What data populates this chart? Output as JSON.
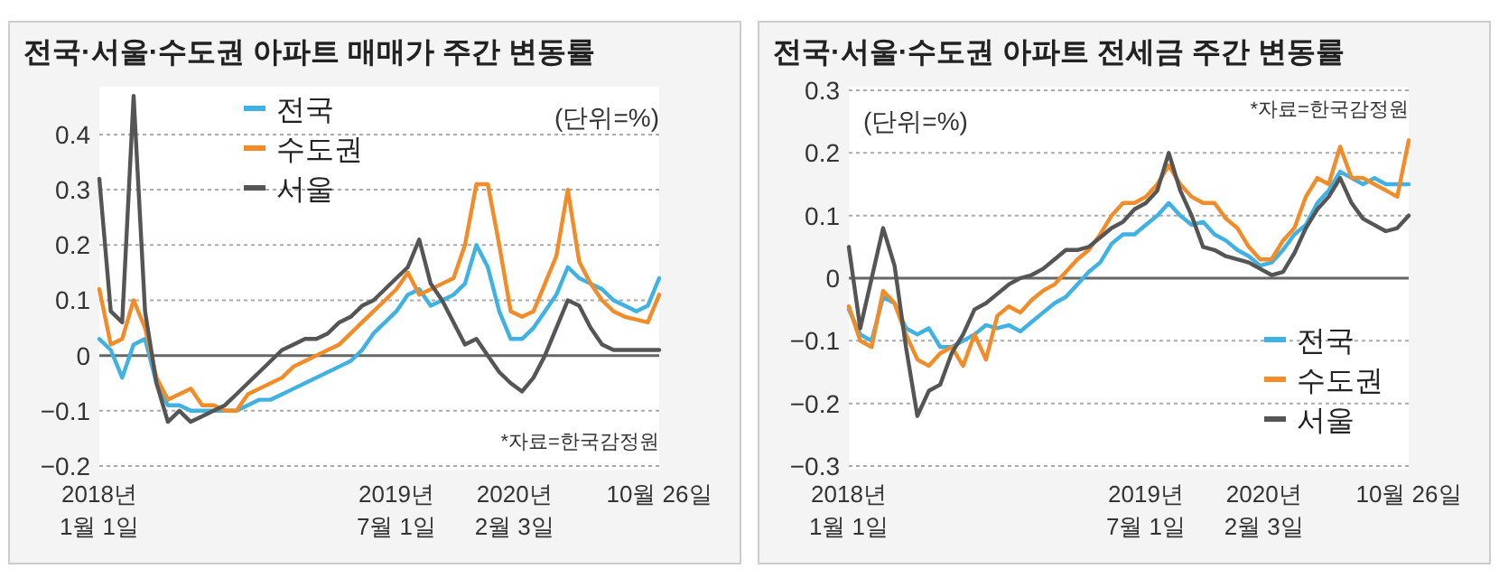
{
  "chart_data": [
    {
      "type": "line",
      "title": "전국·서울·수도권 아파트 매매가 주간 변동률",
      "annotations": [
        "(단위=%)",
        "*자료=한국감정원"
      ],
      "x": [
        "2018-01-01",
        "2018-01-22",
        "2018-02-12",
        "2018-03-05",
        "2018-03-26",
        "2018-04-16",
        "2018-05-07",
        "2018-05-28",
        "2018-06-18",
        "2018-07-09",
        "2018-07-30",
        "2018-08-20",
        "2018-09-10",
        "2018-10-01",
        "2018-10-22",
        "2018-11-12",
        "2018-12-03",
        "2018-12-24",
        "2019-01-14",
        "2019-02-04",
        "2019-02-25",
        "2019-03-18",
        "2019-04-08",
        "2019-04-29",
        "2019-05-20",
        "2019-06-10",
        "2019-07-01",
        "2019-07-22",
        "2019-08-12",
        "2019-09-02",
        "2019-09-23",
        "2019-10-14",
        "2019-11-04",
        "2019-11-25",
        "2019-12-16",
        "2020-01-06",
        "2020-01-27",
        "2020-02-17",
        "2020-03-09",
        "2020-03-30",
        "2020-04-20",
        "2020-05-11",
        "2020-06-01",
        "2020-06-22",
        "2020-07-13",
        "2020-08-03",
        "2020-08-24",
        "2020-09-14",
        "2020-10-05",
        "2020-10-26"
      ],
      "series": [
        {
          "name": "전국",
          "color": "#3fb1e3",
          "values": [
            0.03,
            0.01,
            -0.04,
            0.02,
            0.03,
            -0.05,
            -0.09,
            -0.09,
            -0.1,
            -0.1,
            -0.1,
            -0.1,
            -0.1,
            -0.09,
            -0.08,
            -0.08,
            -0.07,
            -0.06,
            -0.05,
            -0.04,
            -0.03,
            -0.02,
            -0.01,
            0.01,
            0.04,
            0.06,
            0.08,
            0.11,
            0.12,
            0.09,
            0.1,
            0.11,
            0.13,
            0.2,
            0.16,
            0.08,
            0.03,
            0.03,
            0.05,
            0.08,
            0.11,
            0.16,
            0.14,
            0.13,
            0.12,
            0.1,
            0.09,
            0.08,
            0.09,
            0.14
          ]
        },
        {
          "name": "수도권",
          "color": "#f28c28",
          "values": [
            0.12,
            0.02,
            0.03,
            0.1,
            0.05,
            -0.04,
            -0.08,
            -0.07,
            -0.06,
            -0.09,
            -0.09,
            -0.1,
            -0.1,
            -0.07,
            -0.06,
            -0.05,
            -0.04,
            -0.02,
            -0.01,
            0.0,
            0.01,
            0.02,
            0.04,
            0.06,
            0.08,
            0.1,
            0.12,
            0.15,
            0.11,
            0.12,
            0.13,
            0.14,
            0.2,
            0.31,
            0.31,
            0.2,
            0.08,
            0.07,
            0.08,
            0.13,
            0.18,
            0.3,
            0.17,
            0.13,
            0.1,
            0.08,
            0.07,
            0.065,
            0.06,
            0.11
          ]
        },
        {
          "name": "서울",
          "color": "#555555",
          "values": [
            0.32,
            0.08,
            0.06,
            0.47,
            0.08,
            -0.05,
            -0.12,
            -0.1,
            -0.12,
            -0.11,
            -0.1,
            -0.09,
            -0.07,
            -0.05,
            -0.03,
            -0.01,
            0.01,
            0.02,
            0.03,
            0.03,
            0.04,
            0.06,
            0.07,
            0.09,
            0.1,
            0.12,
            0.14,
            0.16,
            0.21,
            0.13,
            0.1,
            0.06,
            0.02,
            0.03,
            0.0,
            -0.03,
            -0.05,
            -0.065,
            -0.04,
            0.0,
            0.05,
            0.1,
            0.09,
            0.05,
            0.02,
            0.01,
            0.01,
            0.01,
            0.01,
            0.01
          ]
        }
      ],
      "xlim": [
        "2018-01-01",
        "2020-10-26"
      ],
      "xticks": [
        {
          "value": "2018-01-01",
          "label": "2018년\n1월 1일"
        },
        {
          "value": "2019-07-01",
          "label": "2019년\n7월 1일"
        },
        {
          "value": "2020-02-03",
          "label": "2020년\n2월 3일"
        },
        {
          "value": "2020-10-26",
          "label": "10월 26일"
        }
      ],
      "ylim": [
        -0.2,
        0.48
      ],
      "yticks": [
        {
          "value": -0.2,
          "label": "−0.2"
        },
        {
          "value": -0.1,
          "label": "−0.1"
        },
        0,
        0.1,
        0.2,
        0.3,
        0.4
      ],
      "grid": "y",
      "legend": "top"
    },
    {
      "type": "line",
      "title": "전국·서울·수도권 아파트 전세금 주간 변동률",
      "annotations": [
        "(단위=%)",
        "*자료=한국감정원"
      ],
      "x": [
        "2018-01-01",
        "2018-01-22",
        "2018-02-12",
        "2018-03-05",
        "2018-03-26",
        "2018-04-16",
        "2018-05-07",
        "2018-05-28",
        "2018-06-18",
        "2018-07-09",
        "2018-07-30",
        "2018-08-20",
        "2018-09-10",
        "2018-10-01",
        "2018-10-22",
        "2018-11-12",
        "2018-12-03",
        "2018-12-24",
        "2019-01-14",
        "2019-02-04",
        "2019-02-25",
        "2019-03-18",
        "2019-04-08",
        "2019-04-29",
        "2019-05-20",
        "2019-06-10",
        "2019-07-01",
        "2019-07-22",
        "2019-08-12",
        "2019-09-02",
        "2019-09-23",
        "2019-10-14",
        "2019-11-04",
        "2019-11-25",
        "2019-12-16",
        "2020-01-06",
        "2020-01-27",
        "2020-02-17",
        "2020-03-09",
        "2020-03-30",
        "2020-04-20",
        "2020-05-11",
        "2020-06-01",
        "2020-06-22",
        "2020-07-13",
        "2020-08-03",
        "2020-08-24",
        "2020-09-14",
        "2020-10-05",
        "2020-10-26"
      ],
      "series": [
        {
          "name": "전국",
          "color": "#3fb1e3",
          "values": [
            -0.05,
            -0.09,
            -0.1,
            -0.03,
            -0.04,
            -0.08,
            -0.09,
            -0.08,
            -0.11,
            -0.11,
            -0.1,
            -0.09,
            -0.075,
            -0.08,
            -0.075,
            -0.085,
            -0.07,
            -0.055,
            -0.04,
            -0.03,
            -0.01,
            0.01,
            0.025,
            0.055,
            0.07,
            0.07,
            0.085,
            0.1,
            0.12,
            0.1,
            0.085,
            0.09,
            0.07,
            0.06,
            0.045,
            0.035,
            0.02,
            0.025,
            0.045,
            0.07,
            0.085,
            0.12,
            0.14,
            0.17,
            0.16,
            0.15,
            0.16,
            0.15,
            0.15,
            0.15
          ]
        },
        {
          "name": "수도권",
          "color": "#f28c28",
          "values": [
            -0.045,
            -0.1,
            -0.11,
            -0.02,
            -0.04,
            -0.09,
            -0.13,
            -0.14,
            -0.12,
            -0.11,
            -0.14,
            -0.09,
            -0.13,
            -0.06,
            -0.045,
            -0.055,
            -0.035,
            -0.02,
            -0.01,
            0.01,
            0.03,
            0.045,
            0.07,
            0.1,
            0.12,
            0.12,
            0.13,
            0.15,
            0.18,
            0.15,
            0.13,
            0.12,
            0.12,
            0.095,
            0.08,
            0.05,
            0.03,
            0.03,
            0.06,
            0.08,
            0.13,
            0.16,
            0.15,
            0.21,
            0.16,
            0.16,
            0.15,
            0.14,
            0.13,
            0.22
          ]
        },
        {
          "name": "서울",
          "color": "#555555",
          "values": [
            0.05,
            -0.08,
            0.0,
            0.08,
            0.02,
            -0.11,
            -0.22,
            -0.18,
            -0.17,
            -0.12,
            -0.09,
            -0.05,
            -0.04,
            -0.025,
            -0.01,
            0.0,
            0.005,
            0.015,
            0.03,
            0.045,
            0.045,
            0.05,
            0.065,
            0.08,
            0.09,
            0.11,
            0.12,
            0.14,
            0.2,
            0.14,
            0.1,
            0.05,
            0.045,
            0.035,
            0.03,
            0.025,
            0.015,
            0.005,
            0.01,
            0.04,
            0.08,
            0.11,
            0.13,
            0.16,
            0.12,
            0.095,
            0.085,
            0.075,
            0.08,
            0.1
          ]
        }
      ],
      "xlim": [
        "2018-01-01",
        "2020-10-26"
      ],
      "xticks": [
        {
          "value": "2018-01-01",
          "label": "2018년\n1월 1일"
        },
        {
          "value": "2019-07-01",
          "label": "2019년\n7월 1일"
        },
        {
          "value": "2020-02-03",
          "label": "2020년\n2월 3일"
        },
        {
          "value": "2020-10-26",
          "label": "10월 26일"
        }
      ],
      "ylim": [
        -0.3,
        0.3
      ],
      "yticks": [
        {
          "value": -0.3,
          "label": "−0.3"
        },
        {
          "value": -0.2,
          "label": "−0.2"
        },
        {
          "value": -0.1,
          "label": "−0.1"
        },
        0,
        0.1,
        0.2,
        0.3
      ],
      "grid": "y",
      "legend": "bottom right"
    }
  ]
}
